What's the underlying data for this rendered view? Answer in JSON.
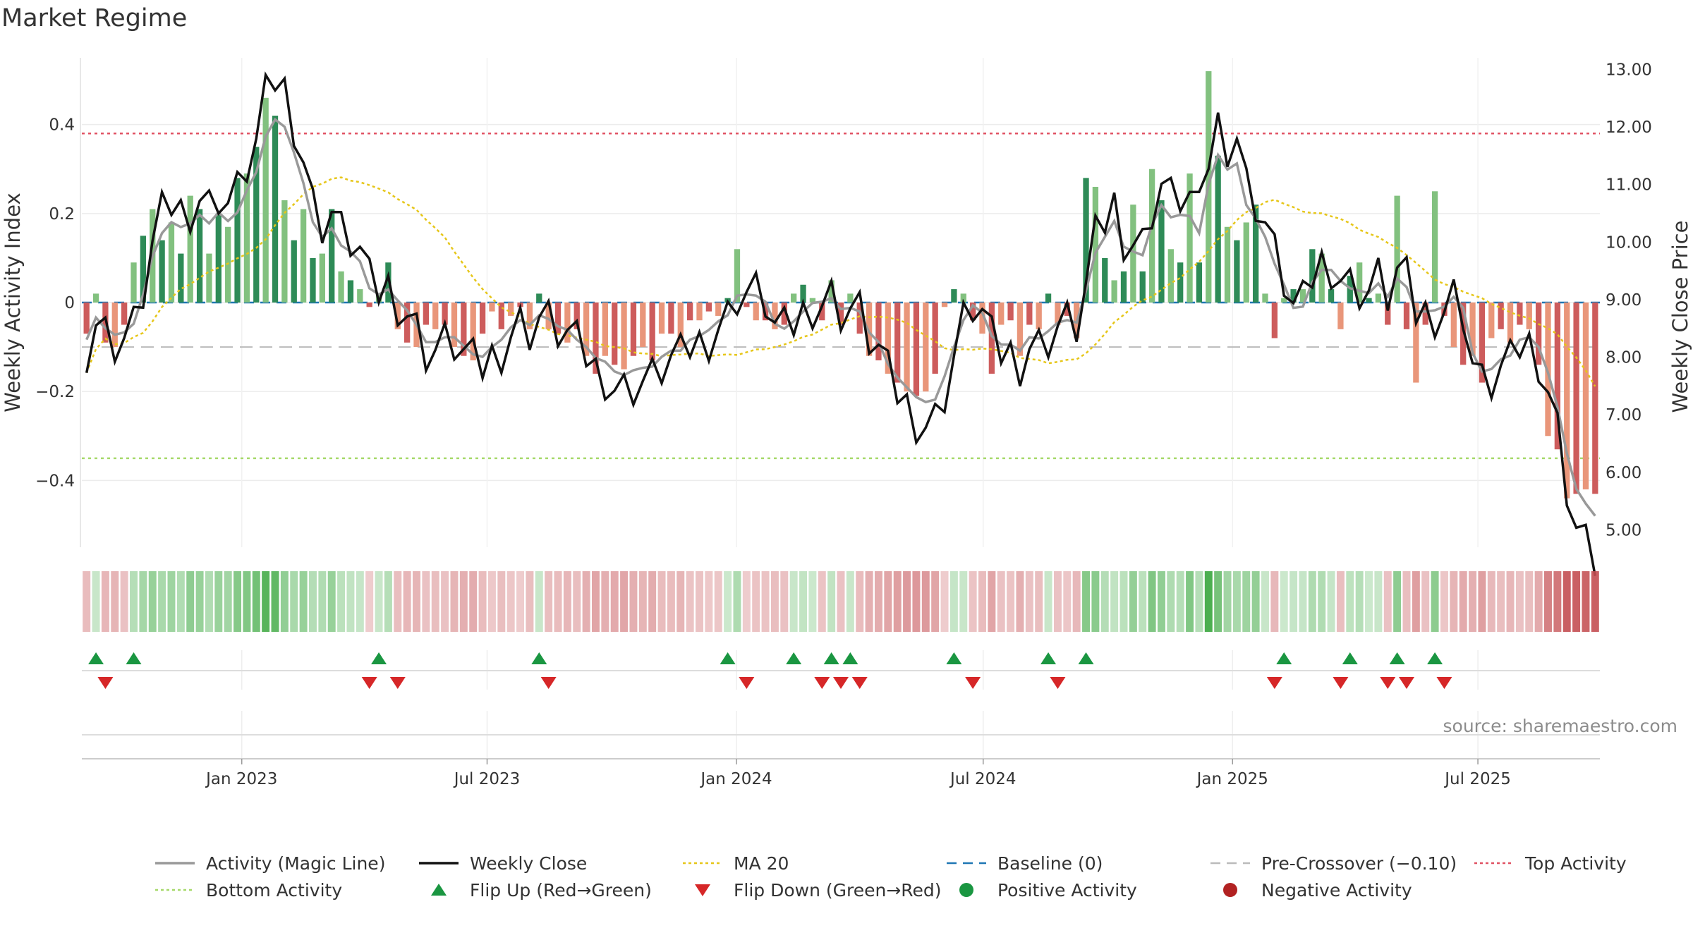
{
  "title": "Market Regime",
  "source": "source: sharemaestro.com",
  "chart_data": {
    "type": "bar",
    "title": "Market Regime",
    "x_axis": {
      "type": "date",
      "range": [
        "2022-09-05",
        "2025-09-29"
      ],
      "tick_labels": [
        "Jan 2023",
        "Jul 2023",
        "Jan 2024",
        "Jul 2024",
        "Jan 2025",
        "Jul 2025"
      ],
      "tick_dates": [
        "2023-01-01",
        "2023-07-01",
        "2024-01-01",
        "2024-07-01",
        "2025-01-01",
        "2025-07-01"
      ]
    },
    "y_left": {
      "label": "Weekly Activity Index",
      "range": [
        -0.55,
        0.55
      ],
      "ticks": [
        0.4,
        0.2,
        0,
        -0.2,
        -0.4
      ],
      "tick_labels": [
        "0.4",
        "0.2",
        "0",
        "−0.2",
        "−0.4"
      ]
    },
    "y_right": {
      "label": "Weekly Close Price",
      "range": [
        4.7,
        13.2
      ],
      "ticks": [
        13,
        12,
        11,
        10,
        9,
        8,
        7,
        6,
        5
      ],
      "tick_labels": [
        "13.00",
        "12.00",
        "11.00",
        "10.00",
        "9.00",
        "8.00",
        "7.00",
        "6.00",
        "5.00"
      ]
    },
    "reference_lines": {
      "top_activity": 0.38,
      "bottom_activity": -0.35,
      "pre_crossover": -0.1,
      "baseline": 0
    },
    "series": [
      {
        "name": "Activity (Magic Line)",
        "color": "#999999"
      },
      {
        "name": "Weekly Close",
        "color": "#111111"
      },
      {
        "name": "MA 20",
        "color": "#e6c619"
      },
      {
        "name": "Baseline (0)",
        "color": "#1f77b4"
      },
      {
        "name": "Pre-Crossover (−0.10)",
        "color": "#bbbbbb"
      },
      {
        "name": "Top Activity",
        "color": "#e05263"
      },
      {
        "name": "Bottom Activity",
        "color": "#a6d96a"
      },
      {
        "name": "Flip Up (Red→Green)",
        "color": "#1a9641"
      },
      {
        "name": "Flip Down (Green→Red)",
        "color": "#d62728"
      },
      {
        "name": "Positive Activity",
        "color": "#1a9641"
      },
      {
        "name": "Negative Activity",
        "color": "#b22222"
      }
    ],
    "activity": [
      -0.07,
      0.02,
      -0.09,
      -0.1,
      -0.05,
      0.09,
      0.15,
      0.21,
      0.14,
      0.18,
      0.11,
      0.24,
      0.21,
      0.11,
      0.2,
      0.17,
      0.28,
      0.29,
      0.35,
      0.46,
      0.42,
      0.23,
      0.14,
      0.21,
      0.1,
      0.11,
      0.21,
      0.07,
      0.05,
      0.03,
      -0.01,
      0.02,
      0.09,
      -0.06,
      -0.09,
      -0.1,
      -0.05,
      -0.06,
      -0.05,
      -0.1,
      -0.12,
      -0.13,
      -0.07,
      -0.02,
      -0.06,
      -0.03,
      -0.01,
      -0.06,
      0.02,
      -0.06,
      -0.07,
      -0.09,
      -0.06,
      -0.12,
      -0.16,
      -0.12,
      -0.14,
      -0.15,
      -0.12,
      -0.1,
      -0.13,
      -0.07,
      -0.07,
      -0.1,
      -0.04,
      -0.04,
      -0.02,
      -0.03,
      0.01,
      0.12,
      -0.01,
      -0.04,
      -0.04,
      -0.06,
      -0.05,
      0.02,
      0.04,
      0.01,
      -0.04,
      0.05,
      -0.05,
      0.02,
      -0.07,
      -0.12,
      -0.13,
      -0.16,
      -0.18,
      -0.2,
      -0.21,
      -0.2,
      -0.16,
      -0.01,
      0.03,
      0.02,
      -0.04,
      -0.07,
      -0.16,
      -0.05,
      -0.04,
      -0.12,
      -0.05,
      -0.06,
      0.02,
      -0.05,
      -0.03,
      -0.08,
      0.28,
      0.26,
      0.1,
      0.05,
      0.07,
      0.22,
      0.07,
      0.3,
      0.23,
      0.12,
      0.09,
      0.29,
      0.09,
      0.52,
      0.33,
      0.17,
      0.14,
      0.18,
      0.22,
      0.02,
      -0.08,
      0.01,
      0.03,
      0.03,
      0.12,
      0.11,
      0.03,
      -0.06,
      0.06,
      0.09,
      0.01,
      0.02,
      -0.05,
      0.24,
      -0.06,
      -0.18,
      -0.05,
      0.25,
      -0.03,
      -0.1,
      -0.14,
      -0.12,
      -0.18,
      -0.08,
      -0.06,
      -0.09,
      -0.05,
      -0.06,
      -0.14,
      -0.3,
      -0.33,
      -0.44,
      -0.43,
      -0.42,
      -0.43
    ]
  },
  "legend": [
    {
      "label": "Activity (Magic Line)",
      "kind": "line-solid",
      "color": "#999999"
    },
    {
      "label": "Weekly Close",
      "kind": "line-solid",
      "color": "#111111"
    },
    {
      "label": "MA 20",
      "kind": "line-dotted",
      "color": "#e6c619"
    },
    {
      "label": "Baseline (0)",
      "kind": "line-dashed",
      "color": "#1f77b4"
    },
    {
      "label": "Pre-Crossover (−0.10)",
      "kind": "line-dashed",
      "color": "#bbbbbb"
    },
    {
      "label": "Top Activity",
      "kind": "line-dotted",
      "color": "#e05263"
    },
    {
      "label": "Bottom Activity",
      "kind": "line-dotted",
      "color": "#a6d96a"
    },
    {
      "label": "Flip Up (Red→Green)",
      "kind": "tri-up",
      "color": "#1a9641"
    },
    {
      "label": "Flip Down (Green→Red)",
      "kind": "tri-down",
      "color": "#d62728"
    },
    {
      "label": "Positive Activity",
      "kind": "dot",
      "color": "#1a9641"
    },
    {
      "label": "Negative Activity",
      "kind": "dot",
      "color": "#b22222"
    }
  ]
}
